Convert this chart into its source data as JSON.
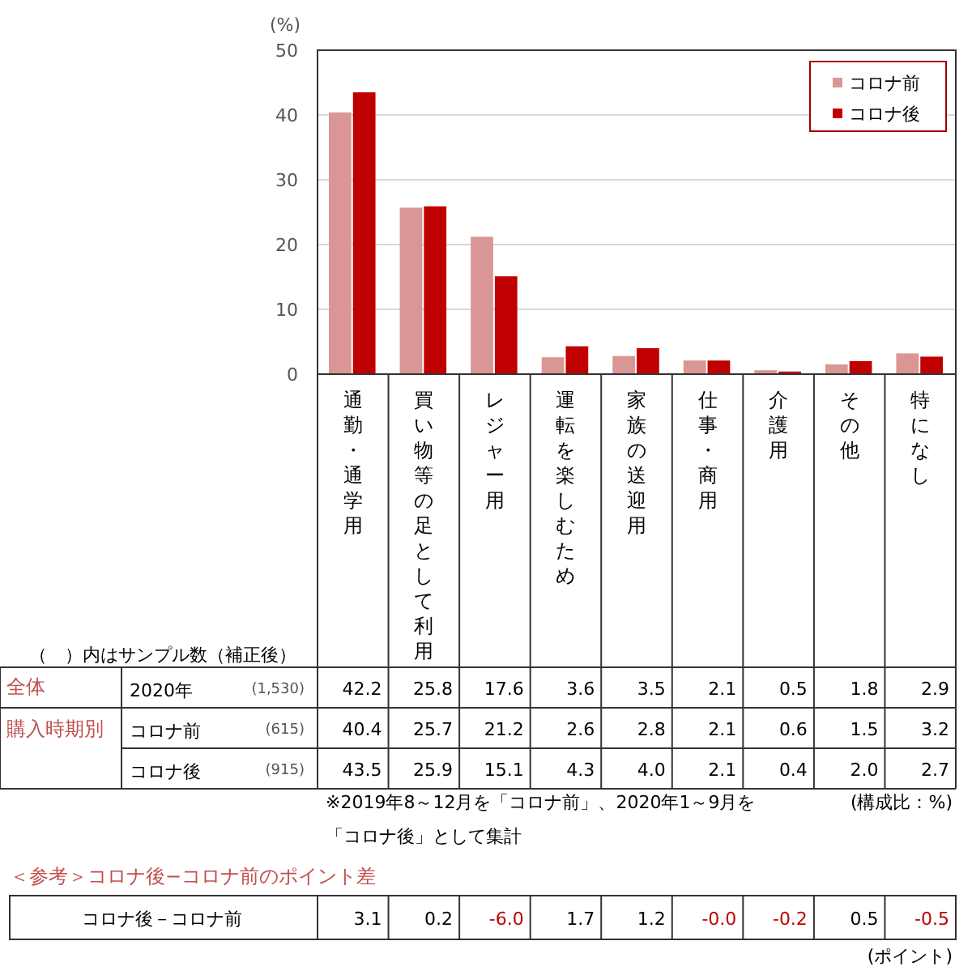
{
  "chart_data": {
    "type": "bar",
    "ylabel": "(%)",
    "categories": [
      "通勤・通学用",
      "買い物等の足として利用",
      "レジャー用",
      "運転を楽しむため",
      "家族の送迎用",
      "仕事・商用",
      "介護用",
      "その他",
      "特になし"
    ],
    "series": [
      {
        "name": "コロナ前",
        "color": "#d99694",
        "values": [
          40.4,
          25.7,
          21.2,
          2.6,
          2.8,
          2.1,
          0.6,
          1.5,
          3.2
        ],
        "value_labels": [
          "40.4",
          "25.7",
          "21.2",
          "2.6",
          "2.8",
          "2.1",
          "0.6",
          "1.5",
          "3.2"
        ]
      },
      {
        "name": "コロナ後",
        "color": "#c00000",
        "values": [
          43.5,
          25.9,
          15.1,
          4.3,
          4.0,
          2.1,
          0.4,
          2.0,
          2.7
        ],
        "value_labels": [
          "43.5",
          "25.9",
          "15.1",
          "4.3",
          "4.0",
          "2.1",
          "0.4",
          "2.0",
          "2.7"
        ]
      }
    ],
    "ylim": [
      0,
      50
    ],
    "yticks": [
      0,
      10,
      20,
      30,
      40,
      50
    ],
    "grid": "y",
    "legend": "top right",
    "annotations": [
      "（　）内はサンプル数（補正後）",
      "全体",
      "購入時期別",
      "2020年",
      "(1,530)",
      "(615)",
      "(915)",
      "※2019年8～12月を「コロナ前」、2020年1～9月を",
      "「コロナ後」として集計",
      "(構成比：%)",
      "＜参考＞コロナ後−コロナ前のポイント差",
      "コロナ後－コロナ前",
      "(ポイント)",
      "42.2",
      "25.8",
      "17.6",
      "3.6",
      "3.5",
      "2.1",
      "0.5",
      "1.8",
      "2.9",
      "3.1",
      "0.2",
      "-6.0",
      "1.7",
      "1.2",
      "-0.0",
      "-0.2",
      "0.5",
      "-0.5"
    ]
  }
}
